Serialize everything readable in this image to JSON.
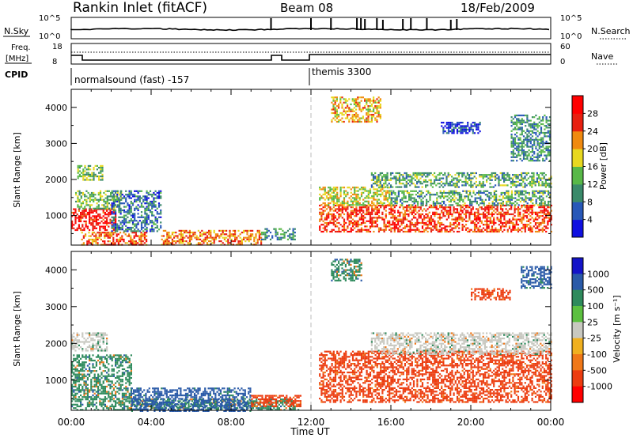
{
  "header": {
    "title": "Rankin Inlet (fitACF)",
    "beam": "Beam 08",
    "date": "18/Feb/2009"
  },
  "aux_panels": {
    "nsky_label": "N.Sky",
    "nsky_ticks": [
      "10^5",
      "10^0"
    ],
    "nsearch_label": "N.Search",
    "nsearch_ticks": [
      "10^5",
      "10^0"
    ],
    "freq_label_line1": "Freq.",
    "freq_label_line2": "[MHz]",
    "freq_ticks": [
      "18",
      "8"
    ],
    "nave_label": "Nave",
    "nave_ticks": [
      "60",
      "0"
    ],
    "cpid_label": "CPID",
    "cpid_segments": [
      {
        "label": "normalsound (fast) -157",
        "start_hour": 0,
        "end_hour": 12
      },
      {
        "label": "themis 3300",
        "start_hour": 12,
        "end_hour": 24
      }
    ]
  },
  "chart_data": [
    {
      "type": "heatmap",
      "panel": "power",
      "xlabel": "Time UT",
      "ylabel": "Slant Range [km]",
      "x_ticks": [
        "00:00",
        "04:00",
        "08:00",
        "12:00",
        "16:00",
        "20:00",
        "00:00"
      ],
      "x_range_hours": [
        0,
        24
      ],
      "y_ticks": [
        1000,
        2000,
        3000,
        4000
      ],
      "ylim": [
        180,
        4500
      ],
      "colorbar": {
        "label": "Power [dB]",
        "ticks": [
          4,
          8,
          12,
          16,
          20,
          24,
          28
        ],
        "range": [
          0,
          30
        ],
        "colors": [
          "#1010e0",
          "#2858b8",
          "#3a8a6a",
          "#58b848",
          "#e8d820",
          "#f08a10",
          "#e82010",
          "#ff0000"
        ]
      },
      "echo_regions": [
        {
          "t0": 0.0,
          "t1": 2.2,
          "r0": 600,
          "r1": 1200,
          "level": 28
        },
        {
          "t0": 0.2,
          "t1": 2.5,
          "r0": 1200,
          "r1": 1700,
          "level": 14
        },
        {
          "t0": 0.5,
          "t1": 3.8,
          "r0": 200,
          "r1": 550,
          "level": 24
        },
        {
          "t0": 2.0,
          "t1": 4.5,
          "r0": 550,
          "r1": 1700,
          "level": 8
        },
        {
          "t0": 4.5,
          "t1": 9.5,
          "r0": 200,
          "r1": 600,
          "level": 22
        },
        {
          "t0": 9.5,
          "t1": 11.2,
          "r0": 350,
          "r1": 650,
          "level": 10
        },
        {
          "t0": 0.3,
          "t1": 1.6,
          "r0": 2000,
          "r1": 2400,
          "level": 14
        },
        {
          "t0": 12.4,
          "t1": 24.0,
          "r0": 550,
          "r1": 1300,
          "level": 26
        },
        {
          "t0": 12.4,
          "t1": 16.0,
          "r0": 1300,
          "r1": 1800,
          "level": 18
        },
        {
          "t0": 16.0,
          "t1": 24.0,
          "r0": 1300,
          "r1": 1700,
          "level": 12
        },
        {
          "t0": 15.0,
          "t1": 24.0,
          "r0": 1800,
          "r1": 2200,
          "level": 12
        },
        {
          "t0": 18.5,
          "t1": 20.5,
          "r0": 3300,
          "r1": 3600,
          "level": 4
        },
        {
          "t0": 13.0,
          "t1": 15.5,
          "r0": 3600,
          "r1": 4300,
          "level": 20
        },
        {
          "t0": 22.0,
          "t1": 24.0,
          "r0": 2500,
          "r1": 3800,
          "level": 10
        }
      ]
    },
    {
      "type": "heatmap",
      "panel": "velocity",
      "xlabel": "Time UT",
      "ylabel": "Slant Range [km]",
      "x_ticks": [
        "00:00",
        "04:00",
        "08:00",
        "12:00",
        "16:00",
        "20:00",
        "00:00"
      ],
      "x_range_hours": [
        0,
        24
      ],
      "y_ticks": [
        1000,
        2000,
        3000,
        4000
      ],
      "ylim": [
        180,
        4500
      ],
      "colorbar": {
        "label": "Velocity [m s⁻¹]",
        "ticks": [
          "1000",
          "500",
          "100",
          "25",
          "-25",
          "-100",
          "-500",
          "-1000"
        ],
        "colors": [
          "#1414c8",
          "#2a5aa8",
          "#2e8a5c",
          "#5cc040",
          "#c8c8c0",
          "#f0b020",
          "#f07818",
          "#ec3c10",
          "#ff0000"
        ]
      },
      "echo_regions": [
        {
          "t0": 0.0,
          "t1": 3.0,
          "r0": 500,
          "r1": 1700,
          "level": 100
        },
        {
          "t0": 0.0,
          "t1": 11.5,
          "r0": 180,
          "r1": 500,
          "level": 100
        },
        {
          "t0": 3.0,
          "t1": 9.0,
          "r0": 180,
          "r1": 800,
          "level": 500
        },
        {
          "t0": 9.0,
          "t1": 11.5,
          "r0": 300,
          "r1": 600,
          "level": -500
        },
        {
          "t0": 0.0,
          "t1": 1.8,
          "r0": 1800,
          "r1": 2300,
          "level": 0
        },
        {
          "t0": 12.4,
          "t1": 24.0,
          "r0": 400,
          "r1": 1800,
          "level": -500
        },
        {
          "t0": 15.0,
          "t1": 24.0,
          "r0": 1700,
          "r1": 2300,
          "level": 0
        },
        {
          "t0": 20.0,
          "t1": 22.0,
          "r0": 3200,
          "r1": 3500,
          "level": -500
        },
        {
          "t0": 22.5,
          "t1": 24.0,
          "r0": 3500,
          "r1": 4100,
          "level": 500
        },
        {
          "t0": 13.0,
          "t1": 14.5,
          "r0": 3700,
          "r1": 4300,
          "level": 100
        }
      ]
    }
  ]
}
